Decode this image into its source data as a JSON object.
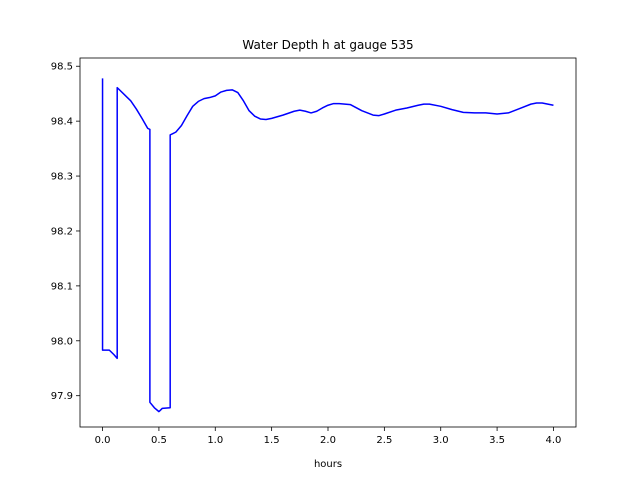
{
  "chart_data": {
    "type": "line",
    "title": "Water Depth h at gauge 535",
    "xlabel": "hours",
    "ylabel": "",
    "xlim": [
      -0.2,
      4.2
    ],
    "ylim": [
      97.843,
      98.515
    ],
    "grid": false,
    "line_color": "#0000ff",
    "xticks": [
      0.0,
      0.5,
      1.0,
      1.5,
      2.0,
      2.5,
      3.0,
      3.5,
      4.0
    ],
    "xtick_labels": [
      "0.0",
      "0.5",
      "1.0",
      "1.5",
      "2.0",
      "2.5",
      "3.0",
      "3.5",
      "4.0"
    ],
    "yticks": [
      97.9,
      98.0,
      98.1,
      98.2,
      98.3,
      98.4,
      98.5
    ],
    "ytick_labels": [
      "97.9",
      "98.0",
      "98.1",
      "98.2",
      "98.3",
      "98.4",
      "98.5"
    ],
    "series": [
      {
        "x": [
          0.0,
          0.0,
          0.06,
          0.1,
          0.13,
          0.13,
          0.2,
          0.25,
          0.3,
          0.35,
          0.4,
          0.42,
          0.42,
          0.46,
          0.5,
          0.51,
          0.53,
          0.6,
          0.6,
          0.62,
          0.65,
          0.7,
          0.75,
          0.8,
          0.85,
          0.9,
          0.95,
          1.0,
          1.05,
          1.1,
          1.15,
          1.2,
          1.25,
          1.3,
          1.35,
          1.4,
          1.45,
          1.5,
          1.6,
          1.7,
          1.75,
          1.8,
          1.85,
          1.9,
          1.95,
          2.0,
          2.05,
          2.1,
          2.2,
          2.3,
          2.4,
          2.45,
          2.5,
          2.6,
          2.7,
          2.8,
          2.85,
          2.9,
          3.0,
          3.1,
          3.2,
          3.3,
          3.4,
          3.5,
          3.6,
          3.7,
          3.8,
          3.85,
          3.9,
          4.0
        ],
        "y": [
          98.478,
          97.983,
          97.983,
          97.975,
          97.968,
          98.461,
          98.447,
          98.437,
          98.422,
          98.405,
          98.387,
          98.385,
          97.888,
          97.878,
          97.871,
          97.873,
          97.877,
          97.878,
          98.375,
          98.377,
          98.38,
          98.392,
          98.41,
          98.427,
          98.436,
          98.441,
          98.443,
          98.446,
          98.453,
          98.456,
          98.457,
          98.452,
          98.437,
          98.419,
          98.409,
          98.404,
          98.403,
          98.405,
          98.411,
          98.418,
          98.42,
          98.418,
          98.415,
          98.418,
          98.424,
          98.429,
          98.432,
          98.432,
          98.43,
          98.419,
          98.411,
          98.41,
          98.413,
          98.42,
          98.424,
          98.429,
          98.431,
          98.431,
          98.427,
          98.421,
          98.416,
          98.415,
          98.415,
          98.413,
          98.415,
          98.423,
          98.431,
          98.433,
          98.433,
          98.429
        ]
      }
    ]
  }
}
